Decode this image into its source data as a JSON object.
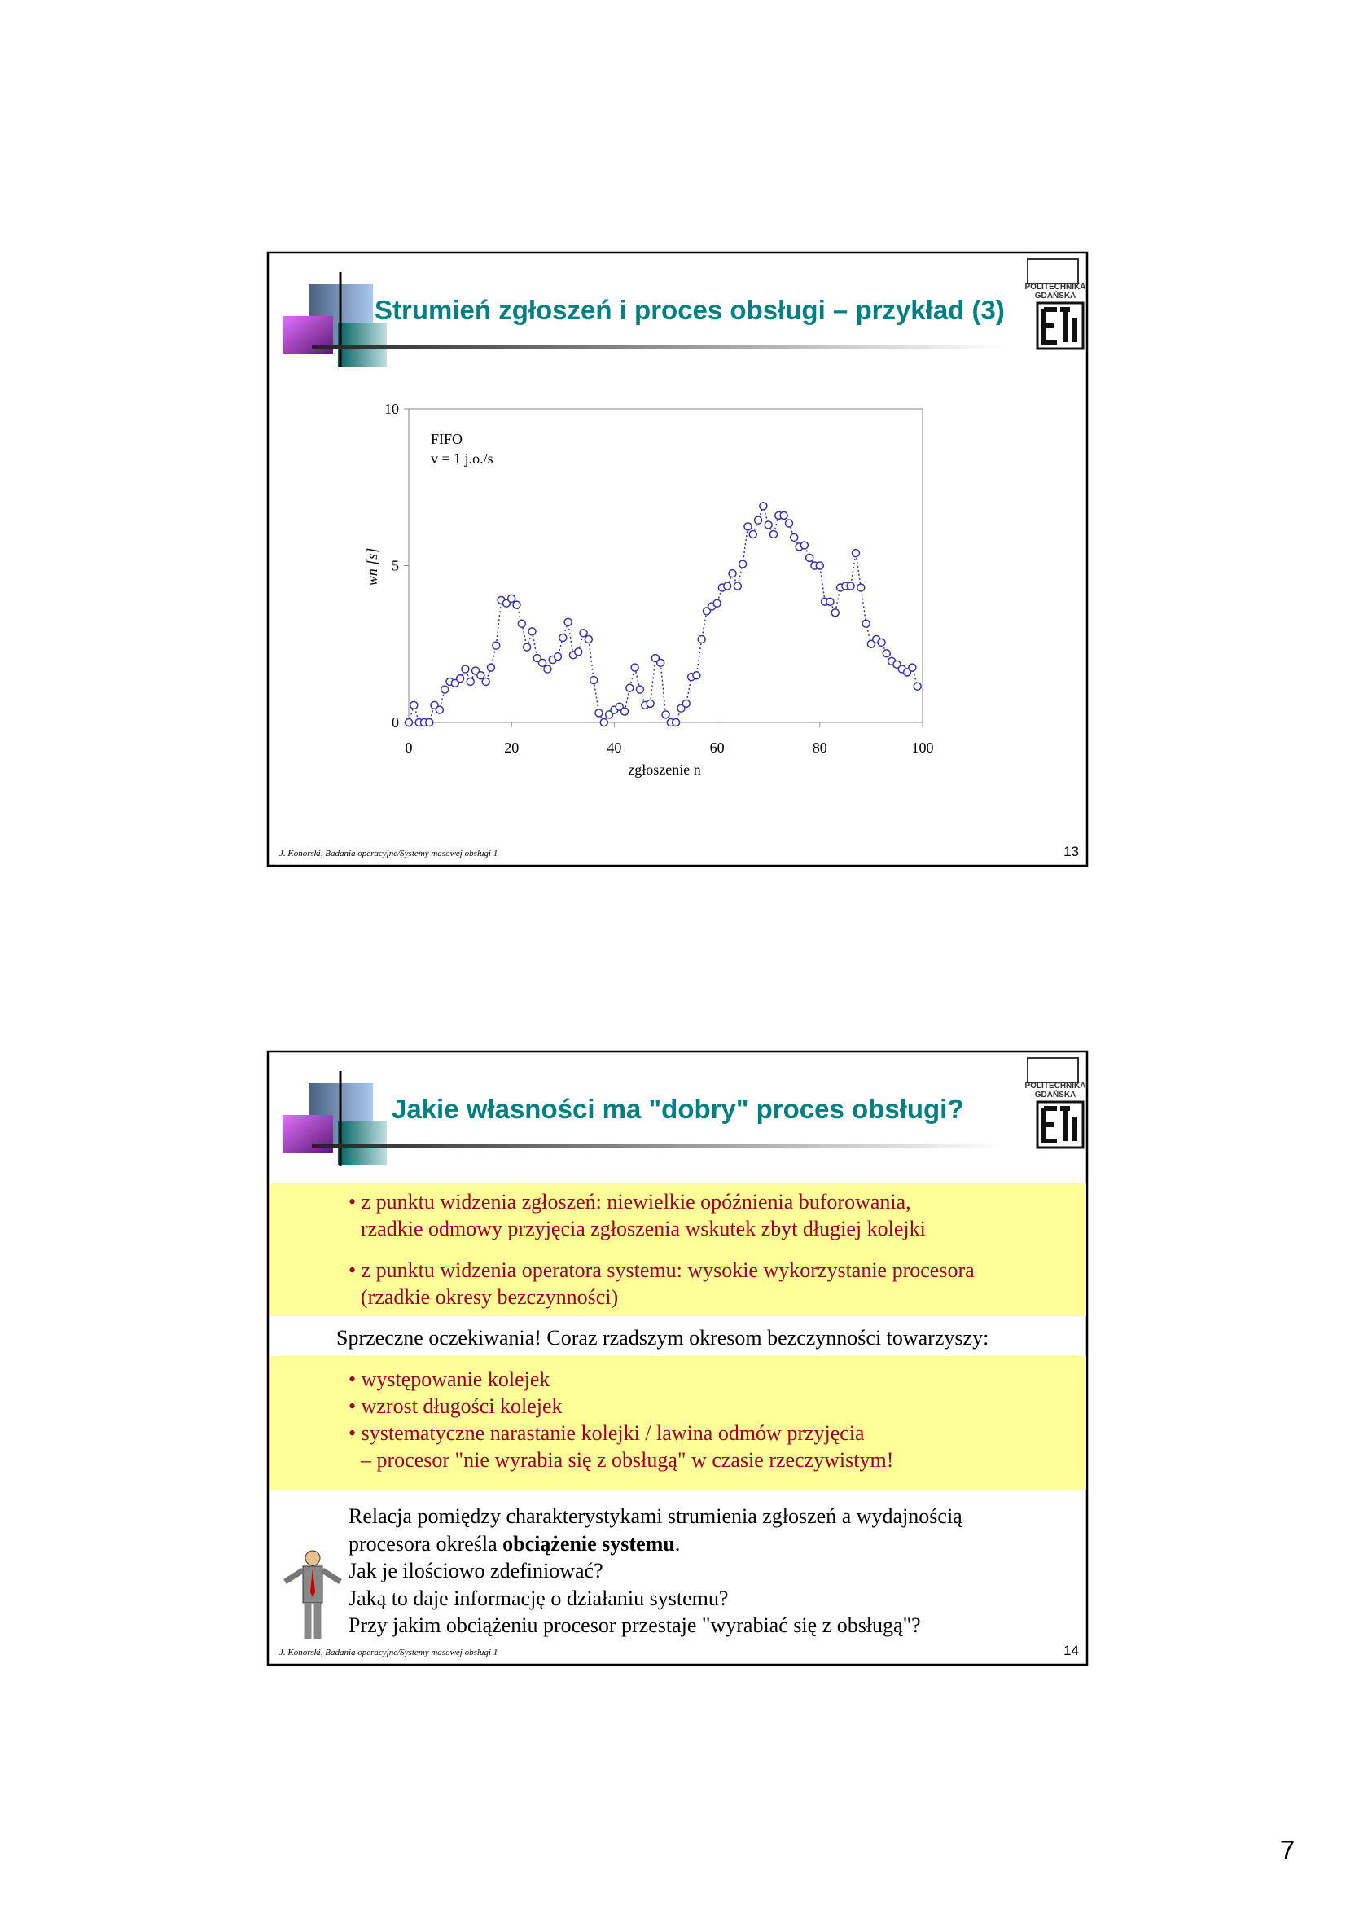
{
  "slides": [
    {
      "title": "Strumień zgłoszeń i proces obsługi – przykład (3)",
      "logo": [
        "POLITECHNIKA",
        "GDAŃSKA"
      ],
      "footer": "J. Konorski, Badania operacyjne/Systemy masowej obsługi 1",
      "number": "13"
    },
    {
      "title": "Jakie własności ma \"dobry\" proces obsługi?",
      "logo": [
        "POLITECHNIKA",
        "GDAŃSKA"
      ],
      "footer": "J. Konorski, Badania operacyjne/Systemy masowej obsługi 1",
      "number": "14",
      "block1": [
        [
          "• z punktu widzenia zgłoszeń: niewielkie opóźnienia buforowania,",
          "rzadkie odmowy przyjęcia zgłoszenia wskutek zbyt długiej kolejki"
        ],
        [
          "• z punktu widzenia operatora systemu: wysokie wykorzystanie procesora",
          "(rzadkie okresy bezczynności)"
        ]
      ],
      "middle": "Sprzeczne oczekiwania! Coraz rzadszym okresom bezczynności towarzyszy:",
      "block2": [
        "• występowanie kolejek",
        "• wzrost długości kolejek",
        "• systematyczne narastanie kolejki / lawina odmów przyjęcia",
        "– procesor \"nie wyrabia się z obsługą\" w czasie rzeczywistym!"
      ],
      "closing": {
        "line1": "Relacja pomiędzy charakterystykami strumienia zgłoszeń a wydajnością",
        "line2_before": "procesora określa ",
        "line2_bold": "obciążenie systemu",
        "line2_after": "."
      },
      "questions": [
        "Jak je ilościowo zdefiniować?",
        "Jaką to daje informację o działaniu systemu?",
        "Przy jakim obciążeniu procesor przestaje \"wyrabiać się z obsługą\"?"
      ]
    }
  ],
  "page_number": "7",
  "chart_data": {
    "type": "scatter",
    "annotation": [
      "FIFO",
      "v = 1 j.o./s"
    ],
    "x_label": "zgłoszenie n",
    "y_label": "wn [s]",
    "color": "#3333aa",
    "xlim": [
      0,
      100
    ],
    "xticks": [
      0,
      20,
      40,
      60,
      80,
      100
    ],
    "ylim": [
      0,
      10
    ],
    "yticks": [
      0,
      5,
      10
    ],
    "x": [
      0,
      1,
      2,
      3,
      4,
      5,
      6,
      7,
      8,
      9,
      10,
      11,
      12,
      13,
      14,
      15,
      16,
      17,
      18,
      19,
      20,
      21,
      22,
      23,
      24,
      25,
      26,
      27,
      28,
      29,
      30,
      31,
      32,
      33,
      34,
      35,
      36,
      37,
      38,
      39,
      40,
      41,
      42,
      43,
      44,
      45,
      46,
      47,
      48,
      49,
      50,
      51,
      52,
      53,
      54,
      55,
      56,
      57,
      58,
      59,
      60,
      61,
      62,
      63,
      64,
      65,
      66,
      67,
      68,
      69,
      70,
      71,
      72,
      73,
      74,
      75,
      76,
      77,
      78,
      79,
      80,
      81,
      82,
      83,
      84,
      85,
      86,
      87,
      88,
      89,
      90,
      91,
      92,
      93,
      94,
      95,
      96,
      97,
      98,
      99
    ],
    "values": [
      0,
      0.55,
      0,
      0,
      0,
      0.55,
      0.4,
      1.05,
      1.3,
      1.25,
      1.4,
      1.7,
      1.3,
      1.65,
      1.5,
      1.3,
      1.75,
      2.45,
      3.9,
      3.8,
      3.95,
      3.75,
      3.15,
      2.4,
      2.9,
      2.05,
      1.9,
      1.7,
      2.0,
      2.1,
      2.7,
      3.2,
      2.15,
      2.25,
      2.85,
      2.65,
      1.35,
      0.3,
      0,
      0.25,
      0.4,
      0.5,
      0.35,
      1.1,
      1.75,
      1.05,
      0.55,
      0.6,
      2.05,
      1.9,
      0.25,
      0,
      0,
      0.45,
      0.6,
      1.45,
      1.5,
      2.65,
      3.55,
      3.7,
      3.8,
      4.3,
      4.35,
      4.75,
      4.35,
      5.05,
      6.25,
      6.0,
      6.45,
      6.9,
      6.3,
      6.0,
      6.6,
      6.6,
      6.35,
      5.9,
      5.6,
      5.65,
      5.25,
      5.0,
      5.0,
      3.85,
      3.85,
      3.5,
      4.3,
      4.35,
      4.35,
      5.4,
      4.3,
      3.15,
      2.5,
      2.65,
      2.55,
      2.2,
      1.95,
      1.85,
      1.7,
      1.6,
      1.75,
      1.15
    ]
  }
}
